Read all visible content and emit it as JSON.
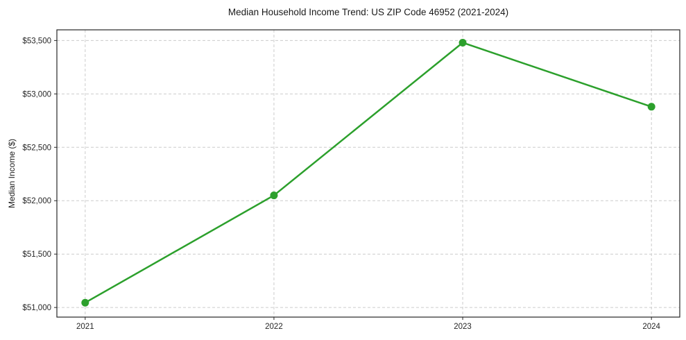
{
  "chart_data": {
    "type": "line",
    "title": "Median Household Income Trend: US ZIP Code 46952 (2021-2024)",
    "xlabel": "",
    "ylabel": "Median Income ($)",
    "x": [
      2021,
      2022,
      2023,
      2024
    ],
    "x_tick_labels": [
      "2021",
      "2022",
      "2023",
      "2024"
    ],
    "series": [
      {
        "name": "Median Household Income",
        "values": [
          51045,
          52050,
          53480,
          52880
        ]
      }
    ],
    "y_ticks": [
      51000,
      51500,
      52000,
      52500,
      53000,
      53500
    ],
    "y_tick_labels": [
      "$51,000",
      "$51,500",
      "$52,000",
      "$52,500",
      "$53,000",
      "$53,500"
    ],
    "xlim": [
      2020.85,
      2024.15
    ],
    "ylim": [
      50910,
      53600
    ],
    "grid": true,
    "grid_style": "dashed",
    "legend_position": "none",
    "marker": "circle",
    "colors": {
      "line": "#2ca02c",
      "marker": "#2ca02c",
      "grid": "#cccccc",
      "spine": "#262626",
      "text": "#1a1a1a",
      "background": "#ffffff"
    }
  }
}
